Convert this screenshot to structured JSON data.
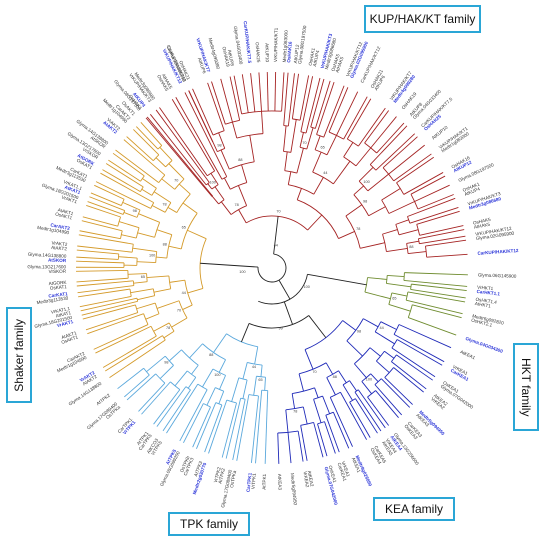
{
  "families": {
    "kup": "KUP/HAK/KT family",
    "shaker": "Shaker family",
    "hkt": "HKT family",
    "kea": "KEA family",
    "tpk": "TPK family"
  },
  "colors": {
    "kup": "#a52323",
    "shaker": "#d49a2a",
    "hkt": "#6f8c2f",
    "kea": "#1f2ab8",
    "tpk": "#5aa8dc",
    "root": "#222222",
    "highlight_label": "#2b35d8",
    "box_border": "#2aa6d6"
  },
  "bootstrap_values": [
    "100",
    "99",
    "98",
    "96",
    "88",
    "85",
    "78",
    "72",
    "70",
    "68",
    "65",
    "58",
    "44",
    "30"
  ],
  "leaf_labels": {
    "kup": [
      "Glyma.08G197500",
      "OsHAK1",
      "AtKUP4",
      "VrKUP/HAK/KT3",
      "Medtr3g086680",
      "OsHAK5",
      "AtHAK5",
      "VrKUP/HAK/KT12",
      "Glyma.02G095900",
      "CarKUP/HAK/KT12",
      "OsHAK21",
      "AtKUP6",
      "VrKUP/HAK/KT7",
      "Medtr4g099280",
      "OsHAK19",
      "AtKUP8",
      "Glyma.04G033400",
      "CarKUP/HAK/KT7.5",
      "OsHAK25",
      "AtKUP10",
      "VrKUP/HAK/KT1",
      "Medtr1g083000",
      "OsHAK16",
      "AtKUP12"
    ],
    "shaker": [
      "Glyma.14G138800",
      "AtAKT2",
      "VrAKT2",
      "Medtr1g104990",
      "CarAKT2",
      "OsAKT1",
      "AtAKT1",
      "VrAKT1",
      "Glyma.18G201500",
      "AtKAT1",
      "VrKAT1.1",
      "Medtr3g113530",
      "CarKAT1",
      "OsKAT1",
      "AtGORK",
      "VrSKOR",
      "Glyma.13G217600",
      "AtSKOR"
    ],
    "hkt": [
      "Glyma.06G145900",
      "VrHKT1",
      "CarHKT1.1",
      "OsHKT1.4",
      "AtHKT1",
      "Medtr6g092820",
      "OsHKT2.1",
      "Glyma.04G034300"
    ],
    "kea": [
      "AtKEA1",
      "VrKEA1",
      "CarKEA1",
      "OsKEA1",
      "Glyma.07G042000",
      "AtKEA2",
      "VrKEA2",
      "Medtr5g094950",
      "AtKEA3",
      "CarKEA3",
      "OsKEA3",
      "Glyma.13G256600",
      "AtKEA4",
      "VrKEA4",
      "AtKEA5",
      "CarKEA5",
      "OsKEA4",
      "Medtr8g026890"
    ],
    "tpk": [
      "AtTPK1",
      "VrTPK1",
      "CarTPK1",
      "OsTPKa",
      "Glyma.17G089400",
      "AtTPK2",
      "VrTPK2",
      "Medtr2g030770",
      "AtTPK3",
      "CarTPK3",
      "OsTPKb",
      "Glyma.05G099200",
      "AtTPK5",
      "VrTPK5",
      "AtKCO3",
      "CarTPK5"
    ]
  }
}
